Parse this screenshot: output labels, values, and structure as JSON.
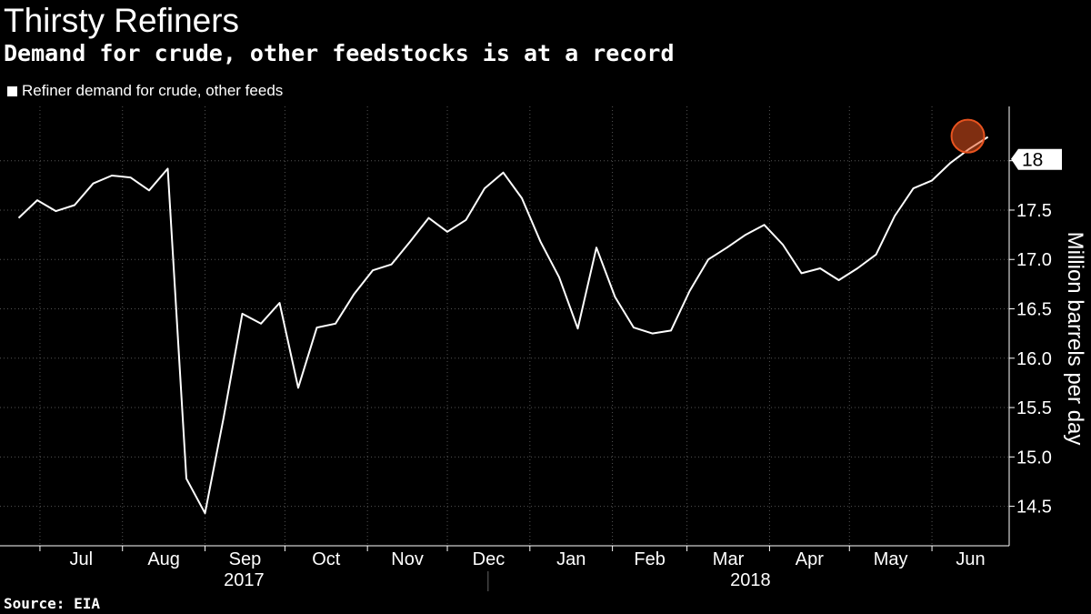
{
  "title": "Thirsty Refiners",
  "subtitle": "Demand for crude, other feedstocks is at a record",
  "source": "Source: EIA",
  "chart_data": {
    "type": "line",
    "title": "Thirsty Refiners",
    "subtitle": "Demand for crude, other feedstocks is at a record",
    "ylabel": "Million barrels per day",
    "xlabel": "",
    "ylim": [
      14.1,
      18.55
    ],
    "yticks": [
      "14.5",
      "15.0",
      "15.5",
      "16.0",
      "16.5",
      "17.0",
      "17.5",
      "18.0"
    ],
    "month_labels": [
      "Jul",
      "Aug",
      "Sep",
      "Oct",
      "Nov",
      "Dec",
      "Jan",
      "Feb",
      "Mar",
      "Apr",
      "May",
      "Jun"
    ],
    "year_labels": [
      "2017",
      "2018"
    ],
    "legend": {
      "position": "top-left",
      "entries": [
        "Refiner demand for crude, other feeds"
      ]
    },
    "grid": true,
    "colors": {
      "line": "#ffffff",
      "background": "#000000",
      "highlight": "#e8531f",
      "grid": "#555555"
    },
    "last_value_label": "18",
    "series": [
      {
        "name": "Refiner demand for crude, other feeds",
        "x": [
          "2017-06-23",
          "2017-06-30",
          "2017-07-07",
          "2017-07-14",
          "2017-07-21",
          "2017-07-28",
          "2017-08-04",
          "2017-08-11",
          "2017-08-18",
          "2017-08-25",
          "2017-09-01",
          "2017-09-08",
          "2017-09-15",
          "2017-09-22",
          "2017-09-29",
          "2017-10-06",
          "2017-10-13",
          "2017-10-20",
          "2017-10-27",
          "2017-11-03",
          "2017-11-10",
          "2017-11-17",
          "2017-11-24",
          "2017-12-01",
          "2017-12-08",
          "2017-12-15",
          "2017-12-22",
          "2017-12-29",
          "2018-01-05",
          "2018-01-12",
          "2018-01-19",
          "2018-01-26",
          "2018-02-02",
          "2018-02-09",
          "2018-02-16",
          "2018-02-23",
          "2018-03-02",
          "2018-03-09",
          "2018-03-16",
          "2018-03-23",
          "2018-03-30",
          "2018-04-06",
          "2018-04-13",
          "2018-04-20",
          "2018-04-27",
          "2018-05-04",
          "2018-05-11",
          "2018-05-18",
          "2018-05-25",
          "2018-06-01",
          "2018-06-08",
          "2018-06-15",
          "2018-06-22"
        ],
        "values": [
          17.42,
          17.6,
          17.49,
          17.55,
          17.77,
          17.85,
          17.83,
          17.7,
          17.92,
          14.78,
          14.43,
          15.4,
          16.45,
          16.35,
          16.56,
          15.7,
          16.31,
          16.35,
          16.65,
          16.89,
          16.95,
          17.18,
          17.42,
          17.28,
          17.4,
          17.72,
          17.88,
          17.62,
          17.18,
          16.82,
          16.3,
          17.12,
          16.62,
          16.31,
          16.25,
          16.28,
          16.68,
          17.0,
          17.12,
          17.25,
          17.35,
          17.15,
          16.86,
          16.91,
          16.79,
          16.91,
          17.05,
          17.44,
          17.72,
          17.8,
          17.98,
          18.12,
          18.24
        ]
      }
    ]
  }
}
